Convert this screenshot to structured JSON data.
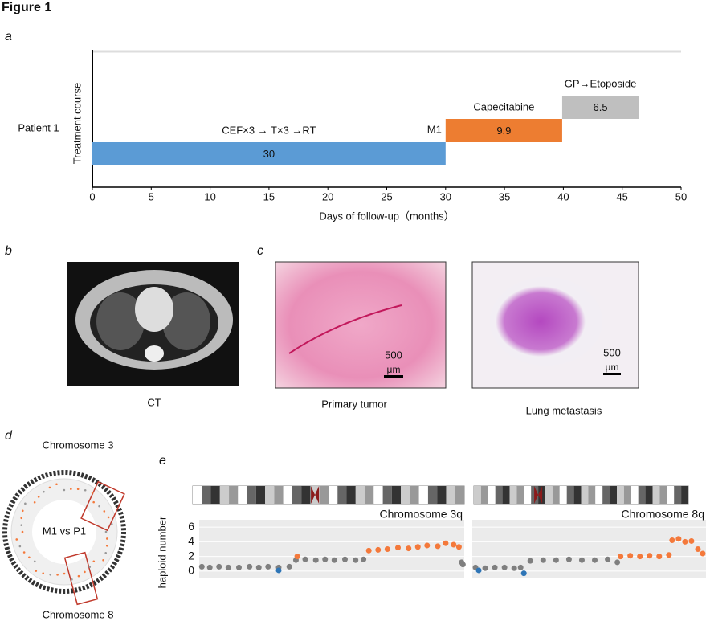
{
  "title": "Figure 1",
  "panel_labels": [
    "a",
    "b",
    "c",
    "d",
    "e"
  ],
  "chart_data": [
    {
      "type": "bar",
      "orientation": "horizontal",
      "stacked": true,
      "categories": [
        "Patient 1"
      ],
      "ylabel": "Treatment course",
      "xlabel": "Days of follow-up（months）",
      "annotations": [
        "M1"
      ],
      "series": [
        {
          "name": "CEF×3 → T×3 →RT",
          "color": "#5b9bd5",
          "values": [
            30
          ]
        },
        {
          "name": "Capecitabine",
          "color": "#ed7d31",
          "values": [
            9.9
          ]
        },
        {
          "name": "GP→Etoposide",
          "color": "#bfbfbf",
          "values": [
            6.5
          ]
        }
      ],
      "xlim": [
        0,
        50
      ],
      "xticks": [
        0,
        5,
        10,
        15,
        20,
        25,
        30,
        35,
        40,
        45,
        50
      ]
    },
    {
      "type": "scatter",
      "title": "Chromosome 3q",
      "ylabel": "haploid number",
      "xlim": [
        0,
        200
      ],
      "ylim": [
        -1,
        7
      ],
      "yticks": [
        0,
        2,
        4,
        6
      ],
      "grid": true,
      "series": [
        {
          "color": "#7f7f7f",
          "x": [
            2,
            8,
            15,
            22,
            30,
            38,
            45,
            52,
            60,
            68,
            73,
            80,
            88,
            95,
            102,
            110,
            118,
            124,
            198,
            199
          ],
          "values": [
            0.6,
            0.5,
            0.6,
            0.5,
            0.5,
            0.6,
            0.5,
            0.6,
            0.5,
            0.6,
            1.5,
            1.6,
            1.5,
            1.6,
            1.5,
            1.6,
            1.5,
            1.6,
            1.2,
            0.9
          ]
        },
        {
          "color": "#f4793b",
          "x": [
            74,
            128,
            135,
            142,
            150,
            158,
            165,
            172,
            180,
            186,
            192,
            196
          ],
          "values": [
            2.0,
            2.8,
            2.9,
            3.0,
            3.2,
            3.1,
            3.3,
            3.5,
            3.4,
            3.8,
            3.6,
            3.3
          ]
        },
        {
          "color": "#2e75b6",
          "x": [
            60
          ],
          "values": [
            0.1
          ]
        }
      ]
    },
    {
      "type": "scatter",
      "title": "Chromosome 8q",
      "xlim": [
        0,
        145
      ],
      "ylim": [
        -1,
        7
      ],
      "yticks": [
        0,
        2,
        4,
        6
      ],
      "grid": true,
      "series": [
        {
          "color": "#7f7f7f",
          "x": [
            2,
            8,
            14,
            20,
            26,
            30,
            36,
            44,
            52,
            60,
            68,
            76,
            84,
            90
          ],
          "values": [
            0.5,
            0.4,
            0.5,
            0.5,
            0.4,
            0.5,
            1.4,
            1.5,
            1.5,
            1.6,
            1.5,
            1.5,
            1.6,
            1.2
          ]
        },
        {
          "color": "#f4793b",
          "x": [
            92,
            98,
            104,
            110,
            116,
            122,
            124,
            128,
            132,
            136,
            140,
            143
          ],
          "values": [
            2.0,
            2.1,
            2.0,
            2.1,
            2.0,
            2.2,
            4.2,
            4.4,
            4.0,
            4.1,
            3.0,
            2.4
          ]
        },
        {
          "color": "#2e75b6",
          "x": [
            4,
            32
          ],
          "values": [
            0.1,
            -0.3
          ]
        }
      ]
    }
  ],
  "images": {
    "ct_caption": "CT",
    "primary_caption": "Primary tumor",
    "lung_caption": "Lung metastasis",
    "scale_value": "500",
    "scale_unit": "μm"
  },
  "circos": {
    "top_label": "Chromosome 3",
    "center_label": "M1 vs P1",
    "bottom_label": "Chromosome 8"
  }
}
